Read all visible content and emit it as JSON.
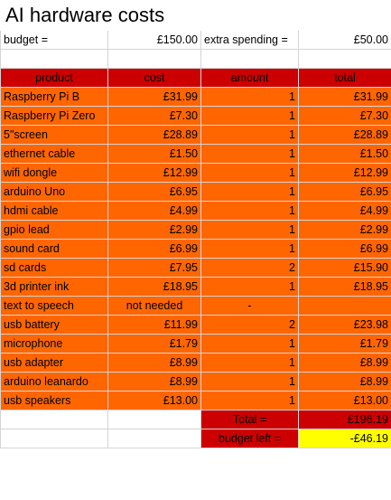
{
  "title": "AI hardware costs",
  "budget_label": "budget =",
  "budget_value": "£150.00",
  "extra_label": "extra spending =",
  "extra_value": "£50.00",
  "headers": [
    "product",
    "cost",
    "amount",
    "total"
  ],
  "rows": [
    {
      "product": "Raspberry Pi B",
      "cost": "£31.99",
      "amount": "1",
      "total": "£31.99"
    },
    {
      "product": "Raspberry Pi Zero",
      "cost": "£7.30",
      "amount": "1",
      "total": "£7.30"
    },
    {
      "product": "5\"screen",
      "cost": "£28.89",
      "amount": "1",
      "total": "£28.89"
    },
    {
      "product": "ethernet cable",
      "cost": "£1.50",
      "amount": "1",
      "total": "£1.50"
    },
    {
      "product": "wifi dongle",
      "cost": "£12.99",
      "amount": "1",
      "total": "£12.99"
    },
    {
      "product": "arduino Uno",
      "cost": "£6.95",
      "amount": "1",
      "total": "£6.95"
    },
    {
      "product": "hdmi cable",
      "cost": "£4.99",
      "amount": "1",
      "total": "£4.99"
    },
    {
      "product": "gpio lead",
      "cost": "£2.99",
      "amount": "1",
      "total": "£2.99"
    },
    {
      "product": "sound card",
      "cost": "£6.99",
      "amount": "1",
      "total": "£6.99"
    },
    {
      "product": "sd cards",
      "cost": "£7.95",
      "amount": "2",
      "total": "£15.90"
    },
    {
      "product": "3d printer ink",
      "cost": "£18.95",
      "amount": "1",
      "total": "£18.95"
    },
    {
      "product": "text to speech",
      "cost": "not needed",
      "amount": "-",
      "total": ""
    },
    {
      "product": "usb battery",
      "cost": "£11.99",
      "amount": "2",
      "total": "£23.98"
    },
    {
      "product": "microphone",
      "cost": "£1.79",
      "amount": "1",
      "total": "£1.79"
    },
    {
      "product": "usb adapter",
      "cost": "£8.99",
      "amount": "1",
      "total": "£8.99"
    },
    {
      "product": "arduino leanardo",
      "cost": "£8.99",
      "amount": "1",
      "total": "£8.99"
    },
    {
      "product": "usb speakers",
      "cost": "£13.00",
      "amount": "1",
      "total": "£13.00"
    }
  ],
  "summary": {
    "total_label": "Total =",
    "total_value": "£196.19",
    "budget_left_label": "budget left =",
    "budget_left_value": "-£46.19"
  },
  "colors": {
    "header_bg": "#cc0000",
    "row_bg": "#ff6600",
    "highlight": "#ffff00"
  }
}
